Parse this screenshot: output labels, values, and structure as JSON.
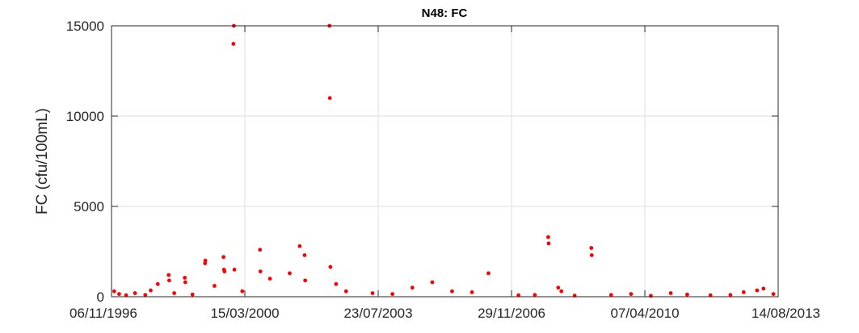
{
  "chart_data": {
    "type": "scatter",
    "title": "N48: FC",
    "xlabel": "",
    "ylabel": "FC (cfu/100mL)",
    "xlim": [
      "06/11/1996",
      "14/08/2013"
    ],
    "ylim": [
      0,
      15000
    ],
    "x_ticks": [
      "06/11/1996",
      "15/03/2000",
      "23/07/2003",
      "29/11/2006",
      "07/04/2010",
      "14/08/2013"
    ],
    "y_ticks": [
      0,
      5000,
      10000,
      15000
    ],
    "grid": true,
    "marker_color": "#ff0000",
    "series": [
      {
        "points": [
          [
            "01/12/1996",
            300
          ],
          [
            "15/01/1997",
            150
          ],
          [
            "20/03/1997",
            80
          ],
          [
            "10/06/1997",
            200
          ],
          [
            "12/09/1997",
            100
          ],
          [
            "01/11/1997",
            350
          ],
          [
            "05/01/1998",
            700
          ],
          [
            "15/04/1998",
            1200
          ],
          [
            "20/04/1998",
            900
          ],
          [
            "05/06/1998",
            200
          ],
          [
            "10/09/1998",
            1050
          ],
          [
            "15/09/1998",
            800
          ],
          [
            "20/11/1998",
            120
          ],
          [
            "15/03/1999",
            1850
          ],
          [
            "18/03/1999",
            2000
          ],
          [
            "10/06/1999",
            600
          ],
          [
            "01/09/1999",
            2200
          ],
          [
            "05/09/1999",
            1500
          ],
          [
            "10/09/1999",
            1400
          ],
          [
            "01/12/1999",
            14000
          ],
          [
            "05/12/1999",
            15000
          ],
          [
            "10/12/1999",
            1500
          ],
          [
            "20/02/2000",
            300
          ],
          [
            "01/08/2000",
            2600
          ],
          [
            "05/08/2000",
            1400
          ],
          [
            "01/11/2000",
            1000
          ],
          [
            "01/05/2001",
            1300
          ],
          [
            "01/08/2001",
            2800
          ],
          [
            "15/09/2001",
            2300
          ],
          [
            "20/09/2001",
            900
          ],
          [
            "01/05/2002",
            15000
          ],
          [
            "05/05/2002",
            11000
          ],
          [
            "10/05/2002",
            1650
          ],
          [
            "01/07/2002",
            700
          ],
          [
            "01/10/2002",
            300
          ],
          [
            "01/06/2003",
            200
          ],
          [
            "01/12/2003",
            150
          ],
          [
            "01/06/2004",
            500
          ],
          [
            "01/12/2004",
            800
          ],
          [
            "01/06/2005",
            300
          ],
          [
            "01/12/2005",
            250
          ],
          [
            "01/05/2006",
            1300
          ],
          [
            "01/02/2007",
            80
          ],
          [
            "01/07/2007",
            100
          ],
          [
            "01/11/2007",
            3300
          ],
          [
            "05/11/2007",
            2950
          ],
          [
            "01/02/2008",
            500
          ],
          [
            "01/03/2008",
            300
          ],
          [
            "01/07/2008",
            60
          ],
          [
            "01/12/2008",
            2700
          ],
          [
            "05/12/2008",
            2300
          ],
          [
            "01/06/2009",
            100
          ],
          [
            "01/12/2009",
            150
          ],
          [
            "01/06/2010",
            50
          ],
          [
            "01/12/2010",
            200
          ],
          [
            "01/05/2011",
            120
          ],
          [
            "01/12/2011",
            80
          ],
          [
            "01/06/2012",
            100
          ],
          [
            "01/10/2012",
            250
          ],
          [
            "01/02/2013",
            350
          ],
          [
            "01/04/2013",
            450
          ],
          [
            "01/07/2013",
            150
          ]
        ]
      }
    ]
  }
}
